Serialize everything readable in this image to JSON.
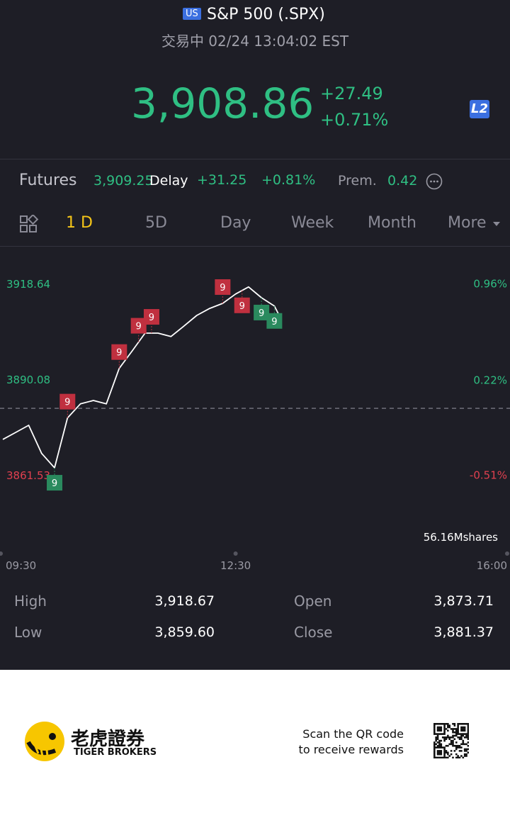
{
  "header": {
    "badge": "US",
    "title": "S&P 500 (.SPX)",
    "status": "交易中 02/24 13:04:02 EST"
  },
  "quote": {
    "price": "3,908.86",
    "change": "+27.49",
    "change_pct": "+0.71%",
    "badge": "L2"
  },
  "futures": {
    "label": "Futures",
    "price": "3,909.25",
    "delay": "Delay",
    "change": "+31.25",
    "change_pct": "+0.81%",
    "prem_label": "Prem.",
    "prem": "0.42"
  },
  "tabs": [
    "1 D",
    "5D",
    "Day",
    "Week",
    "Month",
    "More"
  ],
  "chart_data": {
    "type": "line",
    "x": [
      "09:30",
      "09:40",
      "09:50",
      "10:00",
      "10:10",
      "10:20",
      "10:30",
      "10:40",
      "10:50",
      "11:00",
      "11:10",
      "11:20",
      "11:30",
      "11:40",
      "11:50",
      "12:00",
      "12:10",
      "12:20",
      "12:30",
      "12:40",
      "12:50",
      "13:00",
      "13:04"
    ],
    "series": [
      {
        "color": "#ffffff",
        "values": [
          3872.1,
          3874.2,
          3876.3,
          3867.9,
          3863.6,
          3878.5,
          3882.7,
          3883.7,
          3882.7,
          3893.3,
          3898.5,
          3903.8,
          3903.8,
          3902.8,
          3905.9,
          3909.1,
          3911.2,
          3912.7,
          3915.5,
          3917.6,
          3914.4,
          3911.9,
          3908.9
        ]
      }
    ],
    "xlim": [
      "09:30",
      "16:00"
    ],
    "xticks": [
      "09:30",
      "12:30",
      "16:00"
    ],
    "ylim": [
      3848.8,
      3929.2
    ],
    "yticks": [
      3918.64,
      3890.08,
      3861.53
    ],
    "y2lim": [
      -0.84,
      1.23
    ],
    "y2ticks": [
      {
        "value": 0.96,
        "label": "0.96%"
      },
      {
        "value": 0.22,
        "label": "0.22%"
      },
      {
        "value": -0.51,
        "label": "-0.51%"
      }
    ],
    "reference": 3881.37,
    "volume_label": "56.16Mshares",
    "signals": [
      {
        "x": "10:10",
        "label": "9",
        "color": "#2a8a5e",
        "position": "below"
      },
      {
        "x": "10:20",
        "label": "9",
        "color": "#c0303f",
        "position": "above"
      },
      {
        "x": "11:00",
        "label": "9",
        "color": "#c0303f",
        "position": "above"
      },
      {
        "x": "11:15",
        "label": "9",
        "color": "#c0303f",
        "position": "above"
      },
      {
        "x": "11:25",
        "label": "9",
        "color": "#c0303f",
        "position": "above"
      },
      {
        "x": "12:20",
        "label": "9",
        "color": "#c0303f",
        "position": "above"
      },
      {
        "x": "12:35",
        "label": "9",
        "color": "#c0303f",
        "position": "below"
      },
      {
        "x": "12:50",
        "label": "9",
        "color": "#2a8a5e",
        "position": "below"
      },
      {
        "x": "13:00",
        "label": "9",
        "color": "#2a8a5e",
        "position": "below"
      }
    ]
  },
  "stats": [
    {
      "label": "High",
      "value": "3,918.67"
    },
    {
      "label": "Open",
      "value": "3,873.71"
    },
    {
      "label": "Low",
      "value": "3,859.60"
    },
    {
      "label": "Close",
      "value": "3,881.37"
    }
  ],
  "footer": {
    "brand_cn": "老虎證券",
    "brand_en": "TIGER BROKERS",
    "cta_line1": "Scan the QR code",
    "cta_line2": "to receive rewards"
  }
}
